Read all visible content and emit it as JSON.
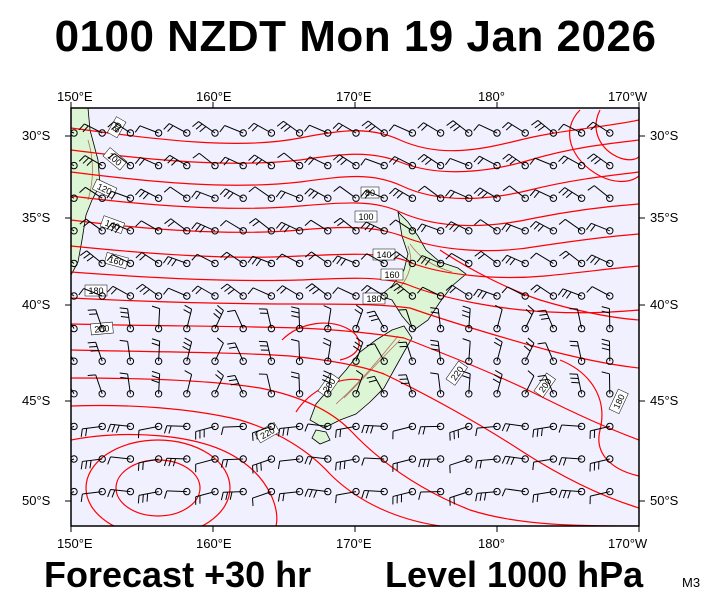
{
  "header": {
    "title": "0100 NZDT Mon 19 Jan 2026"
  },
  "footer": {
    "forecast": "Forecast +30 hr",
    "level": "Level 1000 hPa",
    "model_code": "M3"
  },
  "axes": {
    "lon_ticks": [
      "150°E",
      "160°E",
      "170°E",
      "180°",
      "170°W"
    ],
    "lat_ticks": [
      "30°S",
      "35°S",
      "40°S",
      "45°S",
      "50°S"
    ]
  },
  "contour_labels": [
    "80",
    "100",
    "120",
    "140",
    "160",
    "180",
    "200",
    "220",
    "80",
    "100",
    "140",
    "160",
    "180",
    "200",
    "220",
    "200",
    "180"
  ],
  "colors": {
    "ocean": "#f0f0ff",
    "land": "#dcf5d4",
    "contour": "#ff0000",
    "terrain": "#b07060",
    "wind": "#000000"
  }
}
